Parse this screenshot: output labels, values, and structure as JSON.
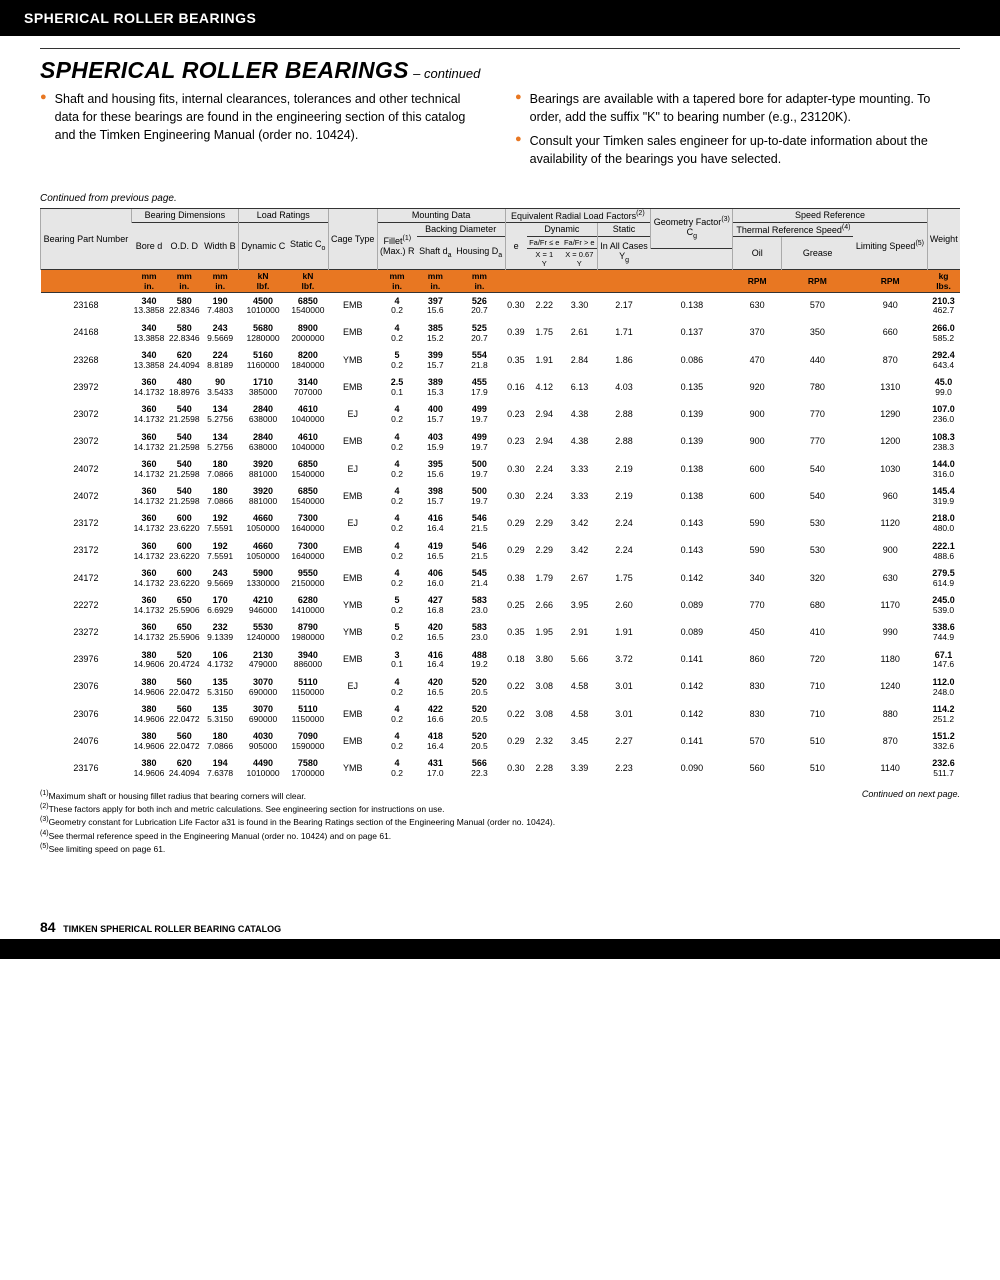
{
  "header_bar": "SPHERICAL ROLLER BEARINGS",
  "title_main": "SPHERICAL ROLLER BEARINGS",
  "title_suffix": " – continued",
  "bullets_left": [
    "Shaft and housing fits, internal clearances, tolerances and other technical data for these bearings are found in the engineering section of this catalog and the Timken Engineering Manual (order no. 10424)."
  ],
  "bullets_right": [
    "Bearings are available with a tapered bore for adapter-type mounting. To order, add the suffix \"K\" to bearing number (e.g., 23120K).",
    "Consult your Timken sales engineer for up-to-date information about the availability of the bearings you have selected."
  ],
  "cont_prev": "Continued from previous page.",
  "colgroups": {
    "g1": "Bearing Dimensions",
    "g2": "Load Ratings",
    "g3": "Mounting Data",
    "g4": "Equivalent Radial Load Factors",
    "g4_sup": "(2)",
    "g5": "Speed Reference"
  },
  "heads": {
    "bpn": "Bearing Part Number",
    "bore": "Bore d",
    "od": "O.D. D",
    "width": "Width B",
    "dyn": "Dynamic C",
    "stat": "Static C",
    "stat_sub": "o",
    "cage": "Cage Type",
    "fillet": "Fillet",
    "fillet_sup": "(1)",
    "fillet2": "(Max.) R",
    "backing": "Backing Diameter",
    "shaft": "Shaft d",
    "shaft_sub": "a",
    "housing": "Housing D",
    "housing_sub": "a",
    "e": "e",
    "dyn2": "Dynamic",
    "dyn2a": "Fa/Fr ≤ e",
    "dyn2b": "Fa/Fr > e",
    "dyn2c": "X = 1",
    "dyn2d": "X = 0.67",
    "y": "Y",
    "yg": "Y",
    "yg_sub": "g",
    "static2": "Static",
    "inall": "In All Cases",
    "geom": "Geometry Factor",
    "geom_sup": "(3)",
    "cg": "C",
    "cg_sub": "g",
    "thermal": "Thermal Reference Speed",
    "thermal_sup": "(4)",
    "oil": "Oil",
    "grease": "Grease",
    "limiting": "Limiting Speed",
    "limiting_sup": "(5)",
    "weight": "Weight"
  },
  "units": {
    "mm": "mm",
    "in": "in.",
    "kn": "kN",
    "lbf": "lbf.",
    "rpm": "RPM",
    "kg": "kg",
    "lbs": "lbs."
  },
  "rows": [
    {
      "n": "23168",
      "b": [
        "340",
        "13.3858"
      ],
      "od": [
        "580",
        "22.8346"
      ],
      "w": [
        "190",
        "7.4803"
      ],
      "dc": [
        "4500",
        "1010000"
      ],
      "sc": [
        "6850",
        "1540000"
      ],
      "ct": "EMB",
      "f": [
        "4",
        "0.2"
      ],
      "sd": [
        "397",
        "15.6"
      ],
      "hd": [
        "526",
        "20.7"
      ],
      "e": "0.30",
      "y1": "2.22",
      "y2": "3.30",
      "yg": "2.17",
      "cg": "0.138",
      "oil": "630",
      "gr": "570",
      "ls": "940",
      "wt": [
        "210.3",
        "462.7"
      ]
    },
    {
      "n": "24168",
      "b": [
        "340",
        "13.3858"
      ],
      "od": [
        "580",
        "22.8346"
      ],
      "w": [
        "243",
        "9.5669"
      ],
      "dc": [
        "5680",
        "1280000"
      ],
      "sc": [
        "8900",
        "2000000"
      ],
      "ct": "EMB",
      "f": [
        "4",
        "0.2"
      ],
      "sd": [
        "385",
        "15.2"
      ],
      "hd": [
        "525",
        "20.7"
      ],
      "e": "0.39",
      "y1": "1.75",
      "y2": "2.61",
      "yg": "1.71",
      "cg": "0.137",
      "oil": "370",
      "gr": "350",
      "ls": "660",
      "wt": [
        "266.0",
        "585.2"
      ]
    },
    {
      "n": "23268",
      "b": [
        "340",
        "13.3858"
      ],
      "od": [
        "620",
        "24.4094"
      ],
      "w": [
        "224",
        "8.8189"
      ],
      "dc": [
        "5160",
        "1160000"
      ],
      "sc": [
        "8200",
        "1840000"
      ],
      "ct": "YMB",
      "f": [
        "5",
        "0.2"
      ],
      "sd": [
        "399",
        "15.7"
      ],
      "hd": [
        "554",
        "21.8"
      ],
      "e": "0.35",
      "y1": "1.91",
      "y2": "2.84",
      "yg": "1.86",
      "cg": "0.086",
      "oil": "470",
      "gr": "440",
      "ls": "870",
      "wt": [
        "292.4",
        "643.4"
      ]
    },
    {
      "n": "23972",
      "b": [
        "360",
        "14.1732"
      ],
      "od": [
        "480",
        "18.8976"
      ],
      "w": [
        "90",
        "3.5433"
      ],
      "dc": [
        "1710",
        "385000"
      ],
      "sc": [
        "3140",
        "707000"
      ],
      "ct": "EMB",
      "f": [
        "2.5",
        "0.1"
      ],
      "sd": [
        "389",
        "15.3"
      ],
      "hd": [
        "455",
        "17.9"
      ],
      "e": "0.16",
      "y1": "4.12",
      "y2": "6.13",
      "yg": "4.03",
      "cg": "0.135",
      "oil": "920",
      "gr": "780",
      "ls": "1310",
      "wt": [
        "45.0",
        "99.0"
      ]
    },
    {
      "n": "23072",
      "b": [
        "360",
        "14.1732"
      ],
      "od": [
        "540",
        "21.2598"
      ],
      "w": [
        "134",
        "5.2756"
      ],
      "dc": [
        "2840",
        "638000"
      ],
      "sc": [
        "4610",
        "1040000"
      ],
      "ct": "EJ",
      "f": [
        "4",
        "0.2"
      ],
      "sd": [
        "400",
        "15.7"
      ],
      "hd": [
        "499",
        "19.7"
      ],
      "e": "0.23",
      "y1": "2.94",
      "y2": "4.38",
      "yg": "2.88",
      "cg": "0.139",
      "oil": "900",
      "gr": "770",
      "ls": "1290",
      "wt": [
        "107.0",
        "236.0"
      ]
    },
    {
      "n": "23072",
      "b": [
        "360",
        "14.1732"
      ],
      "od": [
        "540",
        "21.2598"
      ],
      "w": [
        "134",
        "5.2756"
      ],
      "dc": [
        "2840",
        "638000"
      ],
      "sc": [
        "4610",
        "1040000"
      ],
      "ct": "EMB",
      "f": [
        "4",
        "0.2"
      ],
      "sd": [
        "403",
        "15.9"
      ],
      "hd": [
        "499",
        "19.7"
      ],
      "e": "0.23",
      "y1": "2.94",
      "y2": "4.38",
      "yg": "2.88",
      "cg": "0.139",
      "oil": "900",
      "gr": "770",
      "ls": "1200",
      "wt": [
        "108.3",
        "238.3"
      ]
    },
    {
      "n": "24072",
      "b": [
        "360",
        "14.1732"
      ],
      "od": [
        "540",
        "21.2598"
      ],
      "w": [
        "180",
        "7.0866"
      ],
      "dc": [
        "3920",
        "881000"
      ],
      "sc": [
        "6850",
        "1540000"
      ],
      "ct": "EJ",
      "f": [
        "4",
        "0.2"
      ],
      "sd": [
        "395",
        "15.6"
      ],
      "hd": [
        "500",
        "19.7"
      ],
      "e": "0.30",
      "y1": "2.24",
      "y2": "3.33",
      "yg": "2.19",
      "cg": "0.138",
      "oil": "600",
      "gr": "540",
      "ls": "1030",
      "wt": [
        "144.0",
        "316.0"
      ]
    },
    {
      "n": "24072",
      "b": [
        "360",
        "14.1732"
      ],
      "od": [
        "540",
        "21.2598"
      ],
      "w": [
        "180",
        "7.0866"
      ],
      "dc": [
        "3920",
        "881000"
      ],
      "sc": [
        "6850",
        "1540000"
      ],
      "ct": "EMB",
      "f": [
        "4",
        "0.2"
      ],
      "sd": [
        "398",
        "15.7"
      ],
      "hd": [
        "500",
        "19.7"
      ],
      "e": "0.30",
      "y1": "2.24",
      "y2": "3.33",
      "yg": "2.19",
      "cg": "0.138",
      "oil": "600",
      "gr": "540",
      "ls": "960",
      "wt": [
        "145.4",
        "319.9"
      ]
    },
    {
      "n": "23172",
      "b": [
        "360",
        "14.1732"
      ],
      "od": [
        "600",
        "23.6220"
      ],
      "w": [
        "192",
        "7.5591"
      ],
      "dc": [
        "4660",
        "1050000"
      ],
      "sc": [
        "7300",
        "1640000"
      ],
      "ct": "EJ",
      "f": [
        "4",
        "0.2"
      ],
      "sd": [
        "416",
        "16.4"
      ],
      "hd": [
        "546",
        "21.5"
      ],
      "e": "0.29",
      "y1": "2.29",
      "y2": "3.42",
      "yg": "2.24",
      "cg": "0.143",
      "oil": "590",
      "gr": "530",
      "ls": "1120",
      "wt": [
        "218.0",
        "480.0"
      ]
    },
    {
      "n": "23172",
      "b": [
        "360",
        "14.1732"
      ],
      "od": [
        "600",
        "23.6220"
      ],
      "w": [
        "192",
        "7.5591"
      ],
      "dc": [
        "4660",
        "1050000"
      ],
      "sc": [
        "7300",
        "1640000"
      ],
      "ct": "EMB",
      "f": [
        "4",
        "0.2"
      ],
      "sd": [
        "419",
        "16.5"
      ],
      "hd": [
        "546",
        "21.5"
      ],
      "e": "0.29",
      "y1": "2.29",
      "y2": "3.42",
      "yg": "2.24",
      "cg": "0.143",
      "oil": "590",
      "gr": "530",
      "ls": "900",
      "wt": [
        "222.1",
        "488.6"
      ]
    },
    {
      "n": "24172",
      "b": [
        "360",
        "14.1732"
      ],
      "od": [
        "600",
        "23.6220"
      ],
      "w": [
        "243",
        "9.5669"
      ],
      "dc": [
        "5900",
        "1330000"
      ],
      "sc": [
        "9550",
        "2150000"
      ],
      "ct": "EMB",
      "f": [
        "4",
        "0.2"
      ],
      "sd": [
        "406",
        "16.0"
      ],
      "hd": [
        "545",
        "21.4"
      ],
      "e": "0.38",
      "y1": "1.79",
      "y2": "2.67",
      "yg": "1.75",
      "cg": "0.142",
      "oil": "340",
      "gr": "320",
      "ls": "630",
      "wt": [
        "279.5",
        "614.9"
      ]
    },
    {
      "n": "22272",
      "b": [
        "360",
        "14.1732"
      ],
      "od": [
        "650",
        "25.5906"
      ],
      "w": [
        "170",
        "6.6929"
      ],
      "dc": [
        "4210",
        "946000"
      ],
      "sc": [
        "6280",
        "1410000"
      ],
      "ct": "YMB",
      "f": [
        "5",
        "0.2"
      ],
      "sd": [
        "427",
        "16.8"
      ],
      "hd": [
        "583",
        "23.0"
      ],
      "e": "0.25",
      "y1": "2.66",
      "y2": "3.95",
      "yg": "2.60",
      "cg": "0.089",
      "oil": "770",
      "gr": "680",
      "ls": "1170",
      "wt": [
        "245.0",
        "539.0"
      ]
    },
    {
      "n": "23272",
      "b": [
        "360",
        "14.1732"
      ],
      "od": [
        "650",
        "25.5906"
      ],
      "w": [
        "232",
        "9.1339"
      ],
      "dc": [
        "5530",
        "1240000"
      ],
      "sc": [
        "8790",
        "1980000"
      ],
      "ct": "YMB",
      "f": [
        "5",
        "0.2"
      ],
      "sd": [
        "420",
        "16.5"
      ],
      "hd": [
        "583",
        "23.0"
      ],
      "e": "0.35",
      "y1": "1.95",
      "y2": "2.91",
      "yg": "1.91",
      "cg": "0.089",
      "oil": "450",
      "gr": "410",
      "ls": "990",
      "wt": [
        "338.6",
        "744.9"
      ]
    },
    {
      "n": "23976",
      "b": [
        "380",
        "14.9606"
      ],
      "od": [
        "520",
        "20.4724"
      ],
      "w": [
        "106",
        "4.1732"
      ],
      "dc": [
        "2130",
        "479000"
      ],
      "sc": [
        "3940",
        "886000"
      ],
      "ct": "EMB",
      "f": [
        "3",
        "0.1"
      ],
      "sd": [
        "416",
        "16.4"
      ],
      "hd": [
        "488",
        "19.2"
      ],
      "e": "0.18",
      "y1": "3.80",
      "y2": "5.66",
      "yg": "3.72",
      "cg": "0.141",
      "oil": "860",
      "gr": "720",
      "ls": "1180",
      "wt": [
        "67.1",
        "147.6"
      ]
    },
    {
      "n": "23076",
      "b": [
        "380",
        "14.9606"
      ],
      "od": [
        "560",
        "22.0472"
      ],
      "w": [
        "135",
        "5.3150"
      ],
      "dc": [
        "3070",
        "690000"
      ],
      "sc": [
        "5110",
        "1150000"
      ],
      "ct": "EJ",
      "f": [
        "4",
        "0.2"
      ],
      "sd": [
        "420",
        "16.5"
      ],
      "hd": [
        "520",
        "20.5"
      ],
      "e": "0.22",
      "y1": "3.08",
      "y2": "4.58",
      "yg": "3.01",
      "cg": "0.142",
      "oil": "830",
      "gr": "710",
      "ls": "1240",
      "wt": [
        "112.0",
        "248.0"
      ]
    },
    {
      "n": "23076",
      "b": [
        "380",
        "14.9606"
      ],
      "od": [
        "560",
        "22.0472"
      ],
      "w": [
        "135",
        "5.3150"
      ],
      "dc": [
        "3070",
        "690000"
      ],
      "sc": [
        "5110",
        "1150000"
      ],
      "ct": "EMB",
      "f": [
        "4",
        "0.2"
      ],
      "sd": [
        "422",
        "16.6"
      ],
      "hd": [
        "520",
        "20.5"
      ],
      "e": "0.22",
      "y1": "3.08",
      "y2": "4.58",
      "yg": "3.01",
      "cg": "0.142",
      "oil": "830",
      "gr": "710",
      "ls": "880",
      "wt": [
        "114.2",
        "251.2"
      ]
    },
    {
      "n": "24076",
      "b": [
        "380",
        "14.9606"
      ],
      "od": [
        "560",
        "22.0472"
      ],
      "w": [
        "180",
        "7.0866"
      ],
      "dc": [
        "4030",
        "905000"
      ],
      "sc": [
        "7090",
        "1590000"
      ],
      "ct": "EMB",
      "f": [
        "4",
        "0.2"
      ],
      "sd": [
        "418",
        "16.4"
      ],
      "hd": [
        "520",
        "20.5"
      ],
      "e": "0.29",
      "y1": "2.32",
      "y2": "3.45",
      "yg": "2.27",
      "cg": "0.141",
      "oil": "570",
      "gr": "510",
      "ls": "870",
      "wt": [
        "151.2",
        "332.6"
      ]
    },
    {
      "n": "23176",
      "b": [
        "380",
        "14.9606"
      ],
      "od": [
        "620",
        "24.4094"
      ],
      "w": [
        "194",
        "7.6378"
      ],
      "dc": [
        "4490",
        "1010000"
      ],
      "sc": [
        "7580",
        "1700000"
      ],
      "ct": "YMB",
      "f": [
        "4",
        "0.2"
      ],
      "sd": [
        "431",
        "17.0"
      ],
      "hd": [
        "566",
        "22.3"
      ],
      "e": "0.30",
      "y1": "2.28",
      "y2": "3.39",
      "yg": "2.23",
      "cg": "0.090",
      "oil": "560",
      "gr": "510",
      "ls": "1140",
      "wt": [
        "232.6",
        "511.7"
      ]
    }
  ],
  "footnotes": [
    "Maximum shaft or housing fillet radius that bearing corners will clear.",
    "These factors apply for both inch and metric calculations. See engineering section for instructions on use.",
    "Geometry constant for Lubrication Life Factor a31 is found in the Bearing Ratings section of the Engineering Manual (order no. 10424).",
    "See thermal reference speed in the Engineering Manual (order no. 10424) and on page 61.",
    "See limiting speed on page 61."
  ],
  "footnote_prefixes": [
    "(1)",
    "(2)",
    "(3)",
    "(4)",
    "(5)"
  ],
  "cont_next": "Continued on next page.",
  "page_number": "84",
  "catalog_label": "TIMKEN SPHERICAL ROLLER BEARING CATALOG",
  "style": {
    "accent": "#e87722",
    "header_grey": "#e6e6e6",
    "black": "#000000",
    "body_font": "Arial",
    "title_fontsize": 23,
    "body_fontsize": 12.5,
    "table_fontsize": 9,
    "footnote_fontsize": 8.5
  }
}
